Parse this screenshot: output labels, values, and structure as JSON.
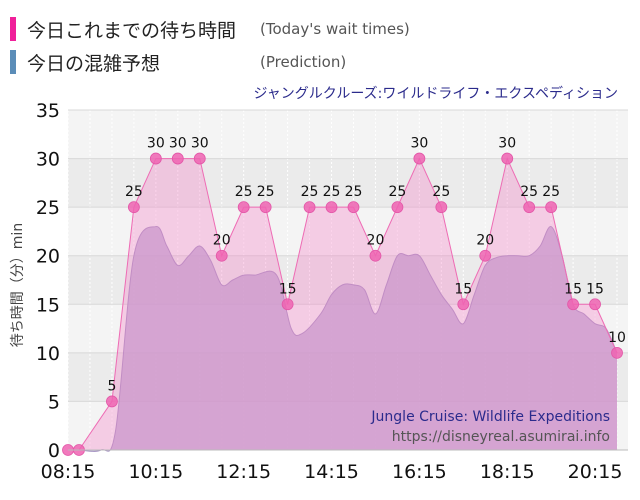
{
  "legend": {
    "today": {
      "label": "今日これまでの待ち時間",
      "sub": "(Today's wait times)",
      "color": "#f0209a"
    },
    "prediction": {
      "label": "今日の混雑予想",
      "sub": "(Prediction)",
      "color": "#5b8db8"
    }
  },
  "chart_data": {
    "type": "area",
    "title": "ジャングルクルーズ:ワイルドライフ・エクスペディション",
    "ylabel": "待ち時間（分）min",
    "xlabel": "",
    "ylim": [
      0,
      35
    ],
    "yticks": [
      0,
      5,
      10,
      15,
      20,
      25,
      30,
      35
    ],
    "xlim_minutes": [
      495,
      1260
    ],
    "xticks": [
      "08:15",
      "10:15",
      "12:15",
      "14:15",
      "16:15",
      "18:15",
      "20:15"
    ],
    "watermark_title": "Jungle Cruise: Wildlife Expeditions",
    "watermark_url": "https://disneyreal.asumirai.info",
    "series": [
      {
        "name": "今日これまでの待ち時間 (Today's wait times)",
        "color": "#f0209a",
        "x": [
          "08:15",
          "08:30",
          "09:15",
          "09:45",
          "10:15",
          "10:45",
          "11:15",
          "11:45",
          "12:15",
          "12:45",
          "13:15",
          "13:45",
          "14:15",
          "14:45",
          "15:15",
          "15:45",
          "16:15",
          "16:45",
          "17:15",
          "17:45",
          "18:15",
          "18:45",
          "19:15",
          "19:45",
          "20:15",
          "20:45"
        ],
        "values": [
          0,
          0,
          5,
          25,
          30,
          30,
          30,
          20,
          25,
          25,
          15,
          25,
          25,
          25,
          20,
          25,
          30,
          25,
          15,
          20,
          30,
          25,
          25,
          15,
          15,
          10
        ],
        "labels": [
          "",
          "",
          "5",
          "25",
          "30",
          "30",
          "30",
          "20",
          "25",
          "25",
          "15",
          "25",
          "25",
          "25",
          "20",
          "25",
          "30",
          "25",
          "15",
          "20",
          "30",
          "25",
          "25",
          "15",
          "15",
          "10"
        ]
      },
      {
        "name": "今日の混雑予想 (Prediction)",
        "color": "#5b8db8",
        "x": [
          "08:15",
          "08:30",
          "09:00",
          "09:20",
          "09:45",
          "10:15",
          "10:30",
          "10:45",
          "11:00",
          "11:15",
          "11:30",
          "11:45",
          "12:00",
          "12:15",
          "12:30",
          "13:00",
          "13:20",
          "13:35",
          "14:00",
          "14:15",
          "14:30",
          "14:45",
          "15:00",
          "15:15",
          "15:30",
          "15:45",
          "16:00",
          "16:15",
          "16:30",
          "16:45",
          "17:00",
          "17:15",
          "17:30",
          "17:45",
          "18:00",
          "18:15",
          "18:30",
          "18:45",
          "19:00",
          "19:15",
          "19:30",
          "19:45",
          "20:00",
          "20:15",
          "20:30",
          "20:45"
        ],
        "values": [
          0,
          0,
          0,
          2,
          20,
          23,
          21,
          19,
          20,
          21,
          19.5,
          17,
          17.5,
          18,
          18,
          18,
          12.5,
          12,
          14,
          16,
          17,
          17,
          16.5,
          14,
          17,
          20,
          20,
          20,
          18,
          16,
          14.5,
          13,
          16,
          19,
          19.8,
          20,
          20,
          20,
          21,
          23,
          20,
          15,
          14,
          13,
          12.5,
          10
        ]
      }
    ]
  }
}
